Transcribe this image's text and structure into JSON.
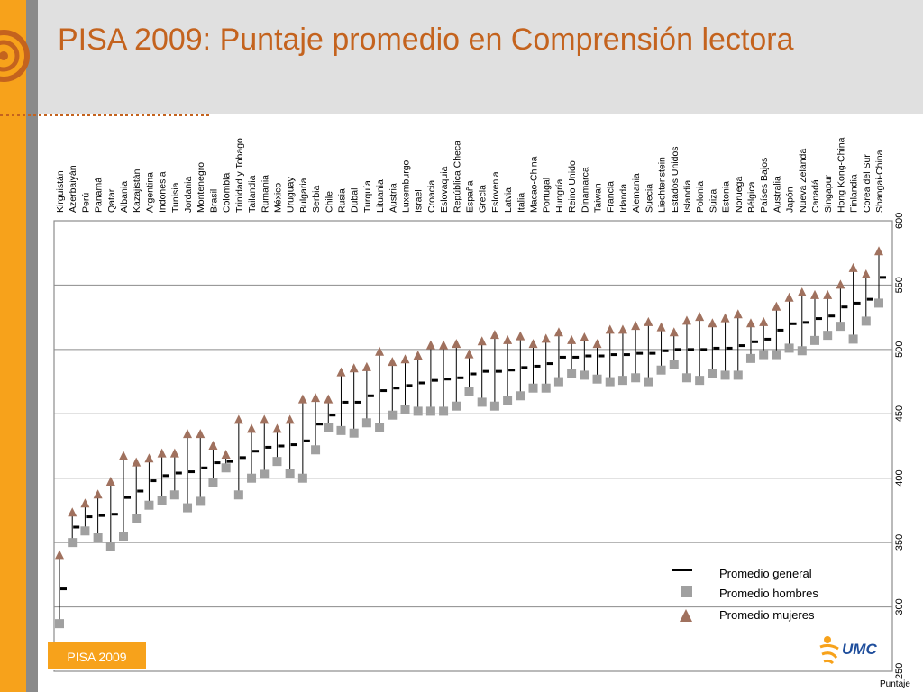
{
  "title": "PISA 2009: Puntaje promedio en Comprensión lectora",
  "footer_badge": "PISA 2009",
  "brand": "UMC",
  "colors": {
    "accent": "#f7a21b",
    "title": "#c4631e",
    "men": "#a0a0a0",
    "women": "#a0715e",
    "mean": "#000000"
  },
  "chart_data": {
    "type": "scatter",
    "title": "",
    "ylabel": "Puntaje",
    "ylim": [
      250,
      600
    ],
    "yticks": [
      250,
      300,
      350,
      400,
      450,
      500,
      550,
      600
    ],
    "legend": [
      {
        "name": "Promedio general",
        "marker": "dash"
      },
      {
        "name": "Promedio hombres",
        "marker": "square"
      },
      {
        "name": "Promedio mujeres",
        "marker": "triangle"
      }
    ],
    "categories": [
      "Kirguistán",
      "Azerbaiyán",
      "Perú",
      "Panamá",
      "Qatar",
      "Albania",
      "Kazajistán",
      "Argentina",
      "Indonesia",
      "Tunisia",
      "Jordania",
      "Montenegro",
      "Brasil",
      "Colombia",
      "Trinidad y Tobago",
      "Tailandia",
      "Rumania",
      "México",
      "Uruguay",
      "Bulgaria",
      "Serbia",
      "Chile",
      "Rusia",
      "Dubai",
      "Turquía",
      "Lituania",
      "Austria",
      "Luxemburgo",
      "Israel",
      "Croacia",
      "Eslovaquia",
      "República Checa",
      "España",
      "Grecia",
      "Eslovenia",
      "Latvia",
      "Italia",
      "Macao-China",
      "Portugal",
      "Hungría",
      "Reino Unido",
      "Dinamarca",
      "Taiwan",
      "Francia",
      "Irlanda",
      "Alemania",
      "Suecia",
      "Liechtenstein",
      "Estados Unidos",
      "Islandia",
      "Polonia",
      "Suiza",
      "Estonia",
      "Noruega",
      "Bélgica",
      "Países Bajos",
      "Australia",
      "Japón",
      "Nueva Zelanda",
      "Canadá",
      "Singapur",
      "Hong Kong-China",
      "Finlandia",
      "Corea del Sur",
      "Shangai-China"
    ],
    "series": [
      {
        "name": "Promedio general",
        "values": [
          314,
          362,
          370,
          371,
          372,
          385,
          390,
          398,
          402,
          404,
          405,
          408,
          412,
          413,
          416,
          421,
          424,
          425,
          426,
          429,
          442,
          449,
          459,
          459,
          464,
          468,
          470,
          472,
          474,
          476,
          477,
          478,
          481,
          483,
          483,
          484,
          486,
          487,
          489,
          494,
          494,
          495,
          495,
          496,
          496,
          497,
          497,
          499,
          500,
          500,
          500,
          501,
          501,
          503,
          506,
          508,
          515,
          520,
          521,
          524,
          526,
          533,
          536,
          539,
          556
        ]
      },
      {
        "name": "Promedio hombres",
        "values": [
          287,
          350,
          359,
          354,
          347,
          355,
          369,
          379,
          383,
          387,
          377,
          382,
          397,
          408,
          387,
          400,
          403,
          413,
          404,
          400,
          422,
          439,
          437,
          435,
          443,
          439,
          449,
          453,
          452,
          452,
          452,
          456,
          467,
          459,
          456,
          460,
          464,
          470,
          470,
          475,
          481,
          480,
          477,
          475,
          476,
          478,
          475,
          484,
          488,
          478,
          476,
          481,
          480,
          480,
          493,
          496,
          496,
          501,
          499,
          507,
          511,
          518,
          508,
          522,
          536
        ]
      },
      {
        "name": "Promedio mujeres",
        "values": [
          340,
          373,
          380,
          387,
          397,
          417,
          412,
          415,
          419,
          419,
          434,
          434,
          425,
          418,
          445,
          438,
          445,
          438,
          445,
          461,
          462,
          461,
          482,
          485,
          486,
          498,
          490,
          492,
          495,
          503,
          503,
          504,
          496,
          506,
          511,
          507,
          510,
          504,
          508,
          513,
          507,
          509,
          504,
          515,
          515,
          518,
          521,
          517,
          513,
          522,
          525,
          520,
          524,
          527,
          520,
          521,
          533,
          540,
          544,
          542,
          542,
          550,
          563,
          558,
          576
        ]
      }
    ]
  }
}
